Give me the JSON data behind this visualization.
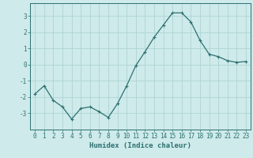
{
  "xlabel": "Humidex (Indice chaleur)",
  "ylabel": "",
  "x": [
    0,
    1,
    2,
    3,
    4,
    5,
    6,
    7,
    8,
    9,
    10,
    11,
    12,
    13,
    14,
    15,
    16,
    17,
    18,
    19,
    20,
    21,
    22,
    23
  ],
  "y": [
    -1.8,
    -1.3,
    -2.2,
    -2.6,
    -3.35,
    -2.7,
    -2.6,
    -2.9,
    -3.25,
    -2.4,
    -1.3,
    -0.05,
    0.8,
    1.7,
    2.45,
    3.2,
    3.2,
    2.65,
    1.5,
    0.65,
    0.5,
    0.25,
    0.15,
    0.2
  ],
  "line_color": "#2d7070",
  "marker": "+",
  "marker_size": 3,
  "marker_lw": 0.8,
  "line_width": 0.9,
  "bg_color": "#ceeaea",
  "grid_color": "#aed4d4",
  "ylim": [
    -4,
    3.8
  ],
  "xlim": [
    -0.5,
    23.5
  ],
  "yticks": [
    -3,
    -2,
    -1,
    0,
    1,
    2,
    3
  ],
  "xticks": [
    0,
    1,
    2,
    3,
    4,
    5,
    6,
    7,
    8,
    9,
    10,
    11,
    12,
    13,
    14,
    15,
    16,
    17,
    18,
    19,
    20,
    21,
    22,
    23
  ],
  "xlabel_fontsize": 6.5,
  "tick_fontsize": 5.5
}
